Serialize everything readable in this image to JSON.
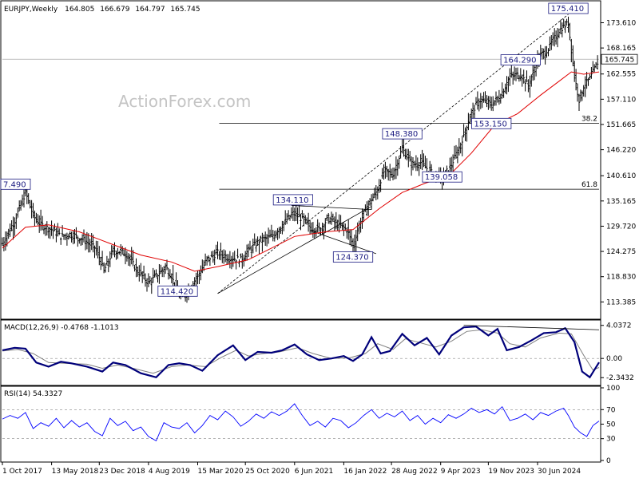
{
  "chart_data": {
    "type": "line",
    "header": {
      "symbol": "EURJPY,Weekly",
      "ohlc": [
        "164.805",
        "166.679",
        "164.797",
        "165.745"
      ]
    },
    "watermark": "ActionForex.com",
    "price_panel": {
      "ylim": [
        110,
        178
      ],
      "y_ticks": [
        "113.385",
        "118.830",
        "124.275",
        "129.720",
        "135.165",
        "140.610",
        "146.220",
        "151.665",
        "157.110",
        "162.555",
        "168.165",
        "173.610"
      ],
      "y_tick_values": [
        113.385,
        118.83,
        124.275,
        129.72,
        135.165,
        140.61,
        146.22,
        151.665,
        157.11,
        162.555,
        168.165,
        173.61
      ],
      "current_price": "165.745",
      "current_price_value": 165.745,
      "pivot_labels": [
        {
          "label": "7.490",
          "x": 0,
          "y": 137.49
        },
        {
          "label": "114.420",
          "x": 114,
          "y": 114.42
        },
        {
          "label": "134.110",
          "x": 189,
          "y": 134.11
        },
        {
          "label": "124.370",
          "x": 228,
          "y": 124.37
        },
        {
          "label": "148.380",
          "x": 260,
          "y": 148.38
        },
        {
          "label": "139.058",
          "x": 286,
          "y": 139.058
        },
        {
          "label": "153.150",
          "x": 318,
          "y": 153.15
        },
        {
          "label": "164.290",
          "x": 337,
          "y": 164.29
        },
        {
          "label": "175.410",
          "x": 368,
          "y": 175.41
        }
      ],
      "fib_levels": [
        {
          "label": "38.2",
          "value": 151.9,
          "x_start": 141
        },
        {
          "label": "61.8",
          "value": 137.7,
          "x_start": 141
        }
      ],
      "channel": [
        {
          "x1": 140,
          "y1": 115.2,
          "x2": 368,
          "y2": 175.41
        },
        {
          "x1": 140,
          "y1": 115.2,
          "x2": 240,
          "y2": 134.0
        }
      ],
      "triangle": [
        {
          "x1": 188,
          "y1": 134.2,
          "x2": 240,
          "y2": 133.3
        },
        {
          "x1": 200,
          "y1": 128.8,
          "x2": 243,
          "y2": 123.8
        }
      ]
    },
    "macd_panel": {
      "label": "MACD(12,26,9) -0.4768 -1.1013",
      "ylim": [
        -3.1,
        4.5
      ],
      "y_ticks": [
        "4.0372",
        "0.00",
        "-2.3432"
      ],
      "y_tick_values": [
        4.0372,
        0,
        -2.3432
      ]
    },
    "rsi_panel": {
      "label": "RSI(14) 54.3327",
      "ylim": [
        0,
        100
      ],
      "y_ticks": [
        "100",
        "70",
        "50",
        "30",
        "0"
      ],
      "y_tick_values": [
        100,
        70,
        50,
        30,
        0
      ]
    },
    "x_axis": {
      "bars": 388,
      "tick_labels": [
        "1 Oct 2017",
        "13 May 2018",
        "23 Dec 2018",
        "4 Aug 2019",
        "15 Mar 2020",
        "25 Oct 2020",
        "6 Jun 2021",
        "16 Jan 2022",
        "28 Aug 2022",
        "9 Apr 2023",
        "19 Nov 2023",
        "30 Jun 2024"
      ],
      "tick_index": [
        0,
        32,
        63,
        95,
        127,
        158,
        190,
        222,
        253,
        285,
        316,
        348
      ]
    },
    "price_path": [
      {
        "x": 0,
        "y": 126.0
      },
      {
        "x": 8,
        "y": 131.0
      },
      {
        "x": 15,
        "y": 137.0
      },
      {
        "x": 20,
        "y": 132.0
      },
      {
        "x": 25,
        "y": 130.0
      },
      {
        "x": 32,
        "y": 129.0
      },
      {
        "x": 38,
        "y": 127.5
      },
      {
        "x": 44,
        "y": 128.0
      },
      {
        "x": 52,
        "y": 127.0
      },
      {
        "x": 60,
        "y": 125.0
      },
      {
        "x": 63,
        "y": 123.0
      },
      {
        "x": 66,
        "y": 120.0
      },
      {
        "x": 72,
        "y": 124.5
      },
      {
        "x": 80,
        "y": 124.0
      },
      {
        "x": 88,
        "y": 120.0
      },
      {
        "x": 95,
        "y": 117.5
      },
      {
        "x": 100,
        "y": 119.0
      },
      {
        "x": 106,
        "y": 121.0
      },
      {
        "x": 110,
        "y": 119.0
      },
      {
        "x": 114,
        "y": 115.0
      },
      {
        "x": 117,
        "y": 114.42
      },
      {
        "x": 122,
        "y": 116.5
      },
      {
        "x": 127,
        "y": 119.0
      },
      {
        "x": 133,
        "y": 122.5
      },
      {
        "x": 140,
        "y": 124.0
      },
      {
        "x": 147,
        "y": 123.0
      },
      {
        "x": 155,
        "y": 122.5
      },
      {
        "x": 160,
        "y": 124.5
      },
      {
        "x": 167,
        "y": 126.5
      },
      {
        "x": 175,
        "y": 127.5
      },
      {
        "x": 182,
        "y": 130.0
      },
      {
        "x": 189,
        "y": 132.5
      },
      {
        "x": 194,
        "y": 131.5
      },
      {
        "x": 200,
        "y": 129.5
      },
      {
        "x": 206,
        "y": 129.0
      },
      {
        "x": 212,
        "y": 131.5
      },
      {
        "x": 218,
        "y": 130.0
      },
      {
        "x": 224,
        "y": 129.0
      },
      {
        "x": 228,
        "y": 125.5
      },
      {
        "x": 232,
        "y": 130.0
      },
      {
        "x": 237,
        "y": 134.0
      },
      {
        "x": 243,
        "y": 137.0
      },
      {
        "x": 248,
        "y": 141.5
      },
      {
        "x": 254,
        "y": 141.0
      },
      {
        "x": 260,
        "y": 146.5
      },
      {
        "x": 266,
        "y": 143.0
      },
      {
        "x": 272,
        "y": 143.5
      },
      {
        "x": 278,
        "y": 141.5
      },
      {
        "x": 286,
        "y": 140.0
      },
      {
        "x": 292,
        "y": 143.0
      },
      {
        "x": 298,
        "y": 147.5
      },
      {
        "x": 304,
        "y": 153.5
      },
      {
        "x": 310,
        "y": 157.0
      },
      {
        "x": 318,
        "y": 156.0
      },
      {
        "x": 324,
        "y": 158.0
      },
      {
        "x": 330,
        "y": 162.0
      },
      {
        "x": 337,
        "y": 162.5
      },
      {
        "x": 342,
        "y": 160.0
      },
      {
        "x": 348,
        "y": 166.0
      },
      {
        "x": 355,
        "y": 168.0
      },
      {
        "x": 362,
        "y": 172.0
      },
      {
        "x": 368,
        "y": 173.5
      },
      {
        "x": 372,
        "y": 162.0
      },
      {
        "x": 375,
        "y": 157.0
      },
      {
        "x": 378,
        "y": 160.0
      },
      {
        "x": 382,
        "y": 161.5
      },
      {
        "x": 388,
        "y": 165.745
      }
    ],
    "ma_path": [
      {
        "x": 0,
        "y": 125.0
      },
      {
        "x": 15,
        "y": 129.5
      },
      {
        "x": 30,
        "y": 130.0
      },
      {
        "x": 50,
        "y": 128.5
      },
      {
        "x": 70,
        "y": 126.0
      },
      {
        "x": 90,
        "y": 123.5
      },
      {
        "x": 110,
        "y": 122.0
      },
      {
        "x": 125,
        "y": 120.0
      },
      {
        "x": 140,
        "y": 121.0
      },
      {
        "x": 160,
        "y": 122.5
      },
      {
        "x": 175,
        "y": 125.0
      },
      {
        "x": 190,
        "y": 127.5
      },
      {
        "x": 210,
        "y": 128.5
      },
      {
        "x": 228,
        "y": 129.0
      },
      {
        "x": 245,
        "y": 133.5
      },
      {
        "x": 260,
        "y": 137.0
      },
      {
        "x": 275,
        "y": 139.0
      },
      {
        "x": 290,
        "y": 140.5
      },
      {
        "x": 305,
        "y": 145.5
      },
      {
        "x": 320,
        "y": 151.5
      },
      {
        "x": 335,
        "y": 154.0
      },
      {
        "x": 350,
        "y": 158.0
      },
      {
        "x": 362,
        "y": 161.0
      },
      {
        "x": 370,
        "y": 163.0
      },
      {
        "x": 378,
        "y": 162.5
      },
      {
        "x": 388,
        "y": 163.0
      }
    ],
    "macd_path": [
      {
        "x": 0,
        "y": 1.0
      },
      {
        "x": 8,
        "y": 1.3
      },
      {
        "x": 15,
        "y": 1.2
      },
      {
        "x": 22,
        "y": -0.5
      },
      {
        "x": 30,
        "y": -1.0
      },
      {
        "x": 38,
        "y": -0.4
      },
      {
        "x": 45,
        "y": -0.6
      },
      {
        "x": 55,
        "y": -1.0
      },
      {
        "x": 65,
        "y": -1.6
      },
      {
        "x": 72,
        "y": -0.5
      },
      {
        "x": 80,
        "y": -0.8
      },
      {
        "x": 90,
        "y": -1.8
      },
      {
        "x": 100,
        "y": -2.3
      },
      {
        "x": 108,
        "y": -0.8
      },
      {
        "x": 115,
        "y": -0.6
      },
      {
        "x": 122,
        "y": -0.8
      },
      {
        "x": 130,
        "y": -1.5
      },
      {
        "x": 140,
        "y": 0.4
      },
      {
        "x": 150,
        "y": 1.6
      },
      {
        "x": 158,
        "y": -0.2
      },
      {
        "x": 166,
        "y": 0.8
      },
      {
        "x": 175,
        "y": 0.7
      },
      {
        "x": 182,
        "y": 1.0
      },
      {
        "x": 190,
        "y": 1.7
      },
      {
        "x": 198,
        "y": 0.5
      },
      {
        "x": 206,
        "y": -0.2
      },
      {
        "x": 214,
        "y": 0.0
      },
      {
        "x": 222,
        "y": 0.3
      },
      {
        "x": 228,
        "y": -0.3
      },
      {
        "x": 234,
        "y": 0.5
      },
      {
        "x": 240,
        "y": 2.6
      },
      {
        "x": 246,
        "y": 0.6
      },
      {
        "x": 252,
        "y": 0.9
      },
      {
        "x": 260,
        "y": 3.0
      },
      {
        "x": 268,
        "y": 1.6
      },
      {
        "x": 276,
        "y": 2.5
      },
      {
        "x": 284,
        "y": 0.5
      },
      {
        "x": 292,
        "y": 2.8
      },
      {
        "x": 300,
        "y": 3.8
      },
      {
        "x": 308,
        "y": 3.9
      },
      {
        "x": 316,
        "y": 2.8
      },
      {
        "x": 322,
        "y": 3.6
      },
      {
        "x": 328,
        "y": 1.0
      },
      {
        "x": 336,
        "y": 1.4
      },
      {
        "x": 344,
        "y": 2.2
      },
      {
        "x": 352,
        "y": 3.1
      },
      {
        "x": 360,
        "y": 3.2
      },
      {
        "x": 366,
        "y": 3.7
      },
      {
        "x": 372,
        "y": 2.0
      },
      {
        "x": 377,
        "y": -1.6
      },
      {
        "x": 382,
        "y": -2.3
      },
      {
        "x": 388,
        "y": -0.48
      }
    ],
    "signal_path": [
      {
        "x": 0,
        "y": 0.9
      },
      {
        "x": 10,
        "y": 1.1
      },
      {
        "x": 20,
        "y": 0.6
      },
      {
        "x": 30,
        "y": -0.5
      },
      {
        "x": 40,
        "y": -0.6
      },
      {
        "x": 55,
        "y": -0.7
      },
      {
        "x": 65,
        "y": -1.2
      },
      {
        "x": 75,
        "y": -0.8
      },
      {
        "x": 85,
        "y": -1.2
      },
      {
        "x": 98,
        "y": -1.8
      },
      {
        "x": 110,
        "y": -1.0
      },
      {
        "x": 120,
        "y": -0.8
      },
      {
        "x": 132,
        "y": -1.0
      },
      {
        "x": 142,
        "y": 0.1
      },
      {
        "x": 152,
        "y": 1.0
      },
      {
        "x": 160,
        "y": 0.3
      },
      {
        "x": 170,
        "y": 0.6
      },
      {
        "x": 180,
        "y": 0.8
      },
      {
        "x": 192,
        "y": 1.3
      },
      {
        "x": 202,
        "y": 0.6
      },
      {
        "x": 214,
        "y": 0.0
      },
      {
        "x": 226,
        "y": 0.1
      },
      {
        "x": 236,
        "y": 0.6
      },
      {
        "x": 244,
        "y": 1.8
      },
      {
        "x": 254,
        "y": 1.1
      },
      {
        "x": 262,
        "y": 2.4
      },
      {
        "x": 272,
        "y": 1.9
      },
      {
        "x": 282,
        "y": 1.4
      },
      {
        "x": 292,
        "y": 2.1
      },
      {
        "x": 302,
        "y": 3.3
      },
      {
        "x": 312,
        "y": 3.5
      },
      {
        "x": 322,
        "y": 3.1
      },
      {
        "x": 330,
        "y": 1.8
      },
      {
        "x": 340,
        "y": 1.4
      },
      {
        "x": 350,
        "y": 2.5
      },
      {
        "x": 362,
        "y": 3.1
      },
      {
        "x": 370,
        "y": 3.0
      },
      {
        "x": 378,
        "y": 0.4
      },
      {
        "x": 384,
        "y": -1.4
      },
      {
        "x": 388,
        "y": -1.1
      }
    ],
    "macd_divergence": {
      "x1": 300,
      "y1": 4.05,
      "x2": 388,
      "y2": 3.5
    },
    "rsi_path": [
      {
        "x": 0,
        "y": 57
      },
      {
        "x": 5,
        "y": 62
      },
      {
        "x": 10,
        "y": 58
      },
      {
        "x": 15,
        "y": 66
      },
      {
        "x": 20,
        "y": 44
      },
      {
        "x": 25,
        "y": 52
      },
      {
        "x": 30,
        "y": 47
      },
      {
        "x": 35,
        "y": 58
      },
      {
        "x": 40,
        "y": 45
      },
      {
        "x": 45,
        "y": 55
      },
      {
        "x": 50,
        "y": 46
      },
      {
        "x": 55,
        "y": 52
      },
      {
        "x": 60,
        "y": 40
      },
      {
        "x": 65,
        "y": 34
      },
      {
        "x": 70,
        "y": 58
      },
      {
        "x": 75,
        "y": 48
      },
      {
        "x": 80,
        "y": 54
      },
      {
        "x": 85,
        "y": 41
      },
      {
        "x": 90,
        "y": 46
      },
      {
        "x": 95,
        "y": 33
      },
      {
        "x": 100,
        "y": 27
      },
      {
        "x": 105,
        "y": 52
      },
      {
        "x": 110,
        "y": 46
      },
      {
        "x": 115,
        "y": 44
      },
      {
        "x": 120,
        "y": 52
      },
      {
        "x": 125,
        "y": 38
      },
      {
        "x": 130,
        "y": 48
      },
      {
        "x": 135,
        "y": 62
      },
      {
        "x": 140,
        "y": 56
      },
      {
        "x": 145,
        "y": 68
      },
      {
        "x": 150,
        "y": 60
      },
      {
        "x": 155,
        "y": 47
      },
      {
        "x": 160,
        "y": 54
      },
      {
        "x": 165,
        "y": 64
      },
      {
        "x": 170,
        "y": 58
      },
      {
        "x": 175,
        "y": 67
      },
      {
        "x": 180,
        "y": 62
      },
      {
        "x": 185,
        "y": 68
      },
      {
        "x": 190,
        "y": 78
      },
      {
        "x": 195,
        "y": 62
      },
      {
        "x": 200,
        "y": 48
      },
      {
        "x": 205,
        "y": 54
      },
      {
        "x": 210,
        "y": 46
      },
      {
        "x": 215,
        "y": 58
      },
      {
        "x": 220,
        "y": 55
      },
      {
        "x": 225,
        "y": 45
      },
      {
        "x": 230,
        "y": 52
      },
      {
        "x": 235,
        "y": 62
      },
      {
        "x": 240,
        "y": 70
      },
      {
        "x": 245,
        "y": 58
      },
      {
        "x": 250,
        "y": 65
      },
      {
        "x": 255,
        "y": 60
      },
      {
        "x": 260,
        "y": 68
      },
      {
        "x": 265,
        "y": 55
      },
      {
        "x": 270,
        "y": 62
      },
      {
        "x": 275,
        "y": 50
      },
      {
        "x": 280,
        "y": 58
      },
      {
        "x": 285,
        "y": 52
      },
      {
        "x": 290,
        "y": 63
      },
      {
        "x": 295,
        "y": 58
      },
      {
        "x": 300,
        "y": 64
      },
      {
        "x": 305,
        "y": 72
      },
      {
        "x": 310,
        "y": 66
      },
      {
        "x": 315,
        "y": 70
      },
      {
        "x": 320,
        "y": 64
      },
      {
        "x": 325,
        "y": 74
      },
      {
        "x": 330,
        "y": 55
      },
      {
        "x": 335,
        "y": 58
      },
      {
        "x": 340,
        "y": 64
      },
      {
        "x": 345,
        "y": 56
      },
      {
        "x": 350,
        "y": 66
      },
      {
        "x": 355,
        "y": 62
      },
      {
        "x": 360,
        "y": 68
      },
      {
        "x": 365,
        "y": 72
      },
      {
        "x": 368,
        "y": 62
      },
      {
        "x": 372,
        "y": 46
      },
      {
        "x": 376,
        "y": 38
      },
      {
        "x": 380,
        "y": 33
      },
      {
        "x": 384,
        "y": 48
      },
      {
        "x": 388,
        "y": 54.3
      }
    ],
    "colors": {
      "price": "#000000",
      "moving_average": "#e00000",
      "macd": "#00007a",
      "signal": "#808080",
      "rsi": "#0000ff",
      "pivot_label": "#1a1a80"
    }
  }
}
